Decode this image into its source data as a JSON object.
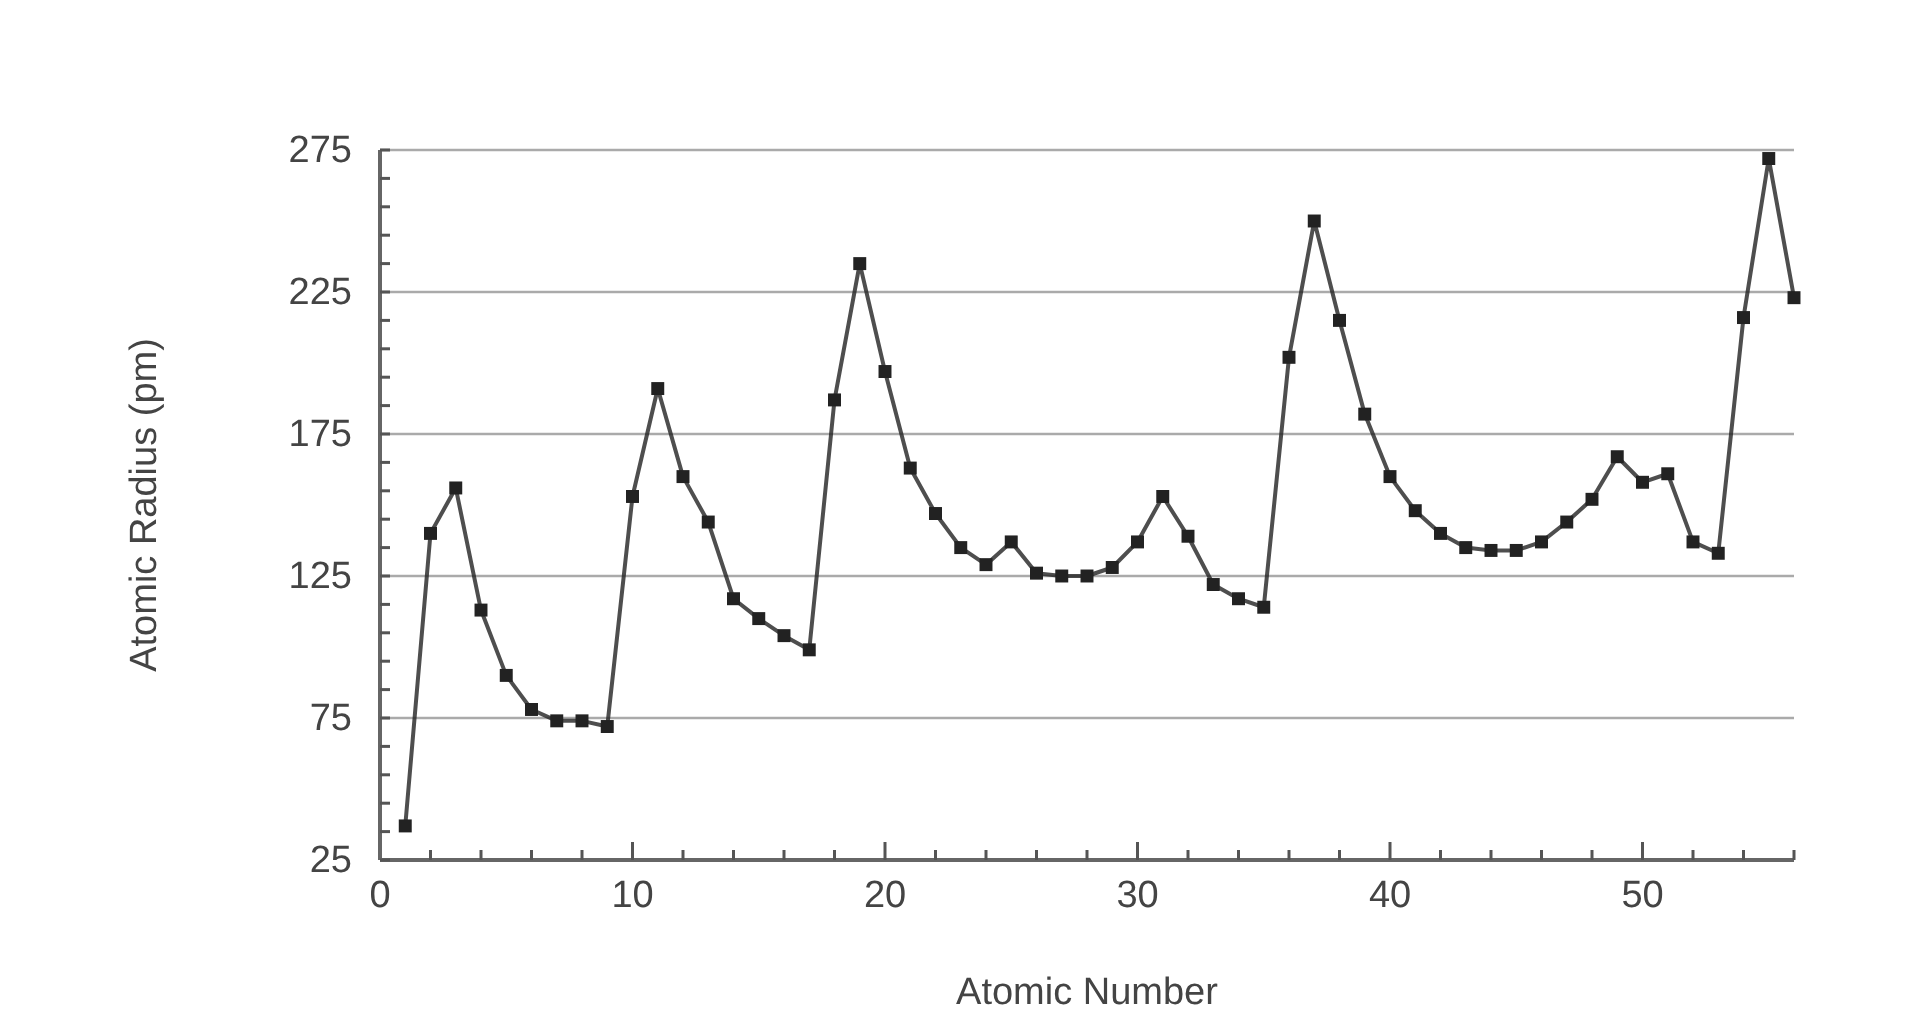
{
  "chart_data": {
    "type": "line",
    "xlabel": "Atomic Number",
    "ylabel": "Atomic Radius (pm)",
    "x": [
      1,
      2,
      3,
      4,
      5,
      6,
      7,
      8,
      9,
      10,
      11,
      12,
      13,
      14,
      15,
      16,
      17,
      18,
      19,
      20,
      21,
      22,
      23,
      24,
      25,
      26,
      27,
      28,
      29,
      30,
      31,
      32,
      33,
      34,
      35,
      36,
      37,
      38,
      39,
      40,
      41,
      42,
      43,
      44,
      45,
      46,
      47,
      48,
      49,
      50,
      51,
      52,
      53,
      54,
      55,
      56
    ],
    "series": [
      {
        "color": "#222222",
        "values": [
          37,
          140,
          156,
          113,
          90,
          78,
          74,
          74,
          72,
          153,
          191,
          160,
          144,
          117,
          110,
          104,
          99,
          187,
          235,
          197,
          163,
          147,
          135,
          129,
          137,
          126,
          125,
          125,
          128,
          137,
          153,
          139,
          122,
          117,
          114,
          202,
          250,
          215,
          182,
          160,
          148,
          140,
          135,
          134,
          134,
          137,
          144,
          152,
          167,
          158,
          161,
          137,
          133,
          216,
          272,
          223
        ]
      }
    ],
    "xlim": [
      0,
      56
    ],
    "ylim": [
      25,
      275
    ],
    "xticks": [
      0,
      {
        "value": 2,
        "label": null
      },
      {
        "value": 4,
        "label": null
      },
      {
        "value": 6,
        "label": null
      },
      {
        "value": 8,
        "label": null
      },
      10,
      {
        "value": 12,
        "label": null
      },
      {
        "value": 14,
        "label": null
      },
      {
        "value": 16,
        "label": null
      },
      {
        "value": 18,
        "label": null
      },
      20,
      {
        "value": 22,
        "label": null
      },
      {
        "value": 24,
        "label": null
      },
      {
        "value": 26,
        "label": null
      },
      {
        "value": 28,
        "label": null
      },
      30,
      {
        "value": 32,
        "label": null
      },
      {
        "value": 34,
        "label": null
      },
      {
        "value": 36,
        "label": null
      },
      {
        "value": 38,
        "label": null
      },
      40,
      {
        "value": 42,
        "label": null
      },
      {
        "value": 44,
        "label": null
      },
      {
        "value": 46,
        "label": null
      },
      {
        "value": 48,
        "label": null
      },
      50,
      {
        "value": 52,
        "label": null
      },
      {
        "value": 54,
        "label": null
      },
      {
        "value": 56,
        "label": null
      }
    ],
    "yticks": [
      25,
      {
        "value": 35,
        "label": null
      },
      {
        "value": 45,
        "label": null
      },
      {
        "value": 55,
        "label": null
      },
      {
        "value": 65,
        "label": null
      },
      75,
      {
        "value": 85,
        "label": null
      },
      {
        "value": 95,
        "label": null
      },
      {
        "value": 105,
        "label": null
      },
      {
        "value": 115,
        "label": null
      },
      125,
      {
        "value": 135,
        "label": null
      },
      {
        "value": 145,
        "label": null
      },
      {
        "value": 155,
        "label": null
      },
      {
        "value": 165,
        "label": null
      },
      175,
      {
        "value": 185,
        "label": null
      },
      {
        "value": 195,
        "label": null
      },
      {
        "value": 205,
        "label": null
      },
      {
        "value": 215,
        "label": null
      },
      225,
      {
        "value": 235,
        "label": null
      },
      {
        "value": 245,
        "label": null
      },
      {
        "value": 255,
        "label": null
      },
      {
        "value": 265,
        "label": null
      },
      275
    ],
    "grid": "y",
    "marker": "square",
    "line_style": "solid"
  }
}
